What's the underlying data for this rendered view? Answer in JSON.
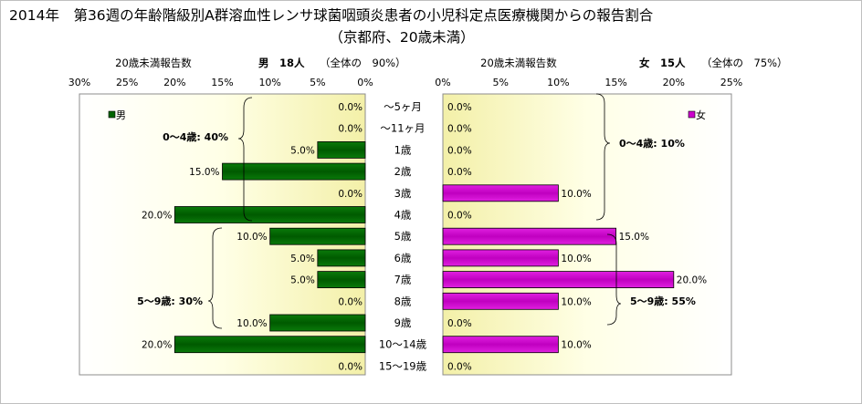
{
  "title_line1": "2014年　第36週の年齢階級別A群溶血性レンサ球菌咽頭炎患者の小児科定点医療機関からの報告割合",
  "title_line2": "（京都府、20歳未満）",
  "age_groups": [
    "～5ヶ月",
    "～11ヶ月",
    "1歳",
    "2歳",
    "3歳",
    "4歳",
    "5歳",
    "6歳",
    "7歳",
    "8歳",
    "9歳",
    "10～14歳",
    "15～19歳"
  ],
  "left": {
    "header_label": "20歳未満報告数",
    "header_count": "男　18人",
    "header_total": "（全体の　90%）",
    "legend": "男",
    "ticks": [
      "30%",
      "25%",
      "20%",
      "15%",
      "10%",
      "5%",
      "0%"
    ],
    "bracket1": "0～4歳: 40%",
    "bracket2": "5～9歳: 30%",
    "color": "#006400"
  },
  "right": {
    "header_label": "20歳未満報告数",
    "header_count": "女　15人",
    "header_total": "（全体の　75%）",
    "legend": "女",
    "ticks": [
      "0%",
      "5%",
      "10%",
      "15%",
      "20%",
      "25%"
    ],
    "bracket1": "0～4歳: 10%",
    "bracket2": "5～9歳: 55%",
    "color": "#cc00cc"
  },
  "chart_data": {
    "type": "bar",
    "orientation": "horizontal",
    "categories": [
      "～5ヶ月",
      "～11ヶ月",
      "1歳",
      "2歳",
      "3歳",
      "4歳",
      "5歳",
      "6歳",
      "7歳",
      "8歳",
      "9歳",
      "10～14歳",
      "15～19歳"
    ],
    "series": [
      {
        "name": "男",
        "values": [
          0.0,
          0.0,
          5.0,
          15.0,
          0.0,
          20.0,
          10.0,
          5.0,
          5.0,
          0.0,
          10.0,
          20.0,
          0.0
        ],
        "labels": [
          "0.0%",
          "0.0%",
          "5.0%",
          "15.0%",
          "0.0%",
          "20.0%",
          "10.0%",
          "5.0%",
          "5.0%",
          "0.0%",
          "10.0%",
          "20.0%",
          "0.0%"
        ],
        "xlim": [
          30,
          0
        ]
      },
      {
        "name": "女",
        "values": [
          0.0,
          0.0,
          0.0,
          0.0,
          10.0,
          0.0,
          15.0,
          10.0,
          20.0,
          10.0,
          0.0,
          10.0,
          0.0
        ],
        "labels": [
          "0.0%",
          "0.0%",
          "0.0%",
          "0.0%",
          "10.0%",
          "0.0%",
          "15.0%",
          "10.0%",
          "20.0%",
          "10.0%",
          "0.0%",
          "10.0%",
          "0.0%"
        ],
        "xlim": [
          0,
          25
        ]
      }
    ]
  }
}
